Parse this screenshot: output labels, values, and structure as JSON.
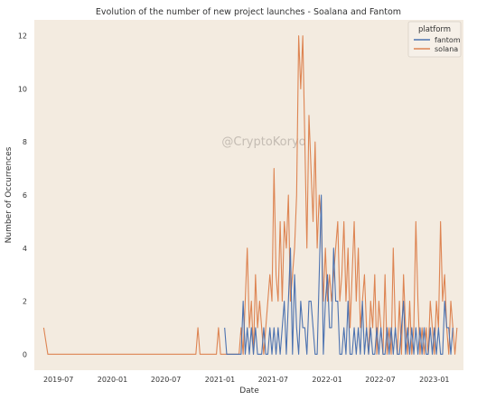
{
  "chart_data": {
    "type": "line",
    "title": "Evolution of the number of new project launches - Soalana and Fantom",
    "xlabel": "Date",
    "ylabel": "Number of Occurrences",
    "watermark": "@CryptoKoryo",
    "legend": {
      "title": "platform",
      "position": "top-right"
    },
    "grid": false,
    "background": "#f3ebe0",
    "xlim": [
      "2019-04-10",
      "2023-04-10"
    ],
    "ylim": [
      -0.6,
      12.6
    ],
    "xticks": [
      "2019-07",
      "2020-01",
      "2020-07",
      "2021-01",
      "2021-07",
      "2022-01",
      "2022-07",
      "2023-01"
    ],
    "yticks": [
      0,
      2,
      4,
      6,
      8,
      10,
      12
    ],
    "series": [
      {
        "name": "fantom",
        "color": "#4c72b0",
        "points": [
          [
            "2021-01-17",
            1
          ],
          [
            "2021-01-24",
            0
          ],
          [
            "2021-03-14",
            0
          ],
          [
            "2021-03-21",
            2
          ],
          [
            "2021-03-28",
            0
          ],
          [
            "2021-04-04",
            1
          ],
          [
            "2021-04-11",
            0
          ],
          [
            "2021-04-18",
            1
          ],
          [
            "2021-04-25",
            0
          ],
          [
            "2021-05-02",
            1
          ],
          [
            "2021-05-09",
            0
          ],
          [
            "2021-05-23",
            0
          ],
          [
            "2021-05-30",
            1
          ],
          [
            "2021-06-06",
            0
          ],
          [
            "2021-06-13",
            0
          ],
          [
            "2021-06-20",
            1
          ],
          [
            "2021-06-27",
            0
          ],
          [
            "2021-07-04",
            1
          ],
          [
            "2021-07-11",
            0
          ],
          [
            "2021-07-18",
            1
          ],
          [
            "2021-07-25",
            0
          ],
          [
            "2021-08-01",
            1
          ],
          [
            "2021-08-08",
            2
          ],
          [
            "2021-08-15",
            0
          ],
          [
            "2021-08-22",
            2
          ],
          [
            "2021-08-29",
            4
          ],
          [
            "2021-09-05",
            0
          ],
          [
            "2021-09-12",
            3
          ],
          [
            "2021-09-19",
            1
          ],
          [
            "2021-09-26",
            0
          ],
          [
            "2021-10-03",
            2
          ],
          [
            "2021-10-10",
            1
          ],
          [
            "2021-10-17",
            1
          ],
          [
            "2021-10-24",
            0
          ],
          [
            "2021-10-31",
            2
          ],
          [
            "2021-11-07",
            2
          ],
          [
            "2021-11-14",
            1
          ],
          [
            "2021-11-21",
            0
          ],
          [
            "2021-11-28",
            0
          ],
          [
            "2021-12-05",
            3
          ],
          [
            "2021-12-12",
            6
          ],
          [
            "2021-12-19",
            0
          ],
          [
            "2021-12-26",
            2
          ],
          [
            "2022-01-02",
            3
          ],
          [
            "2022-01-09",
            1
          ],
          [
            "2022-01-16",
            1
          ],
          [
            "2022-01-23",
            4
          ],
          [
            "2022-01-30",
            2
          ],
          [
            "2022-02-06",
            2
          ],
          [
            "2022-02-13",
            0
          ],
          [
            "2022-02-20",
            0
          ],
          [
            "2022-02-27",
            1
          ],
          [
            "2022-03-06",
            0
          ],
          [
            "2022-03-13",
            2
          ],
          [
            "2022-03-20",
            0
          ],
          [
            "2022-03-27",
            0
          ],
          [
            "2022-04-03",
            1
          ],
          [
            "2022-04-10",
            0
          ],
          [
            "2022-04-17",
            1
          ],
          [
            "2022-04-24",
            0
          ],
          [
            "2022-05-01",
            2
          ],
          [
            "2022-05-08",
            0
          ],
          [
            "2022-05-15",
            1
          ],
          [
            "2022-05-22",
            0
          ],
          [
            "2022-05-29",
            1
          ],
          [
            "2022-06-05",
            0
          ],
          [
            "2022-06-12",
            0
          ],
          [
            "2022-06-19",
            1
          ],
          [
            "2022-06-26",
            0
          ],
          [
            "2022-07-03",
            1
          ],
          [
            "2022-07-10",
            0
          ],
          [
            "2022-07-17",
            0
          ],
          [
            "2022-07-24",
            1
          ],
          [
            "2022-07-31",
            0
          ],
          [
            "2022-08-07",
            1
          ],
          [
            "2022-08-14",
            0
          ],
          [
            "2022-08-21",
            1
          ],
          [
            "2022-08-28",
            0
          ],
          [
            "2022-09-04",
            0
          ],
          [
            "2022-09-11",
            1
          ],
          [
            "2022-09-18",
            2
          ],
          [
            "2022-09-25",
            0
          ],
          [
            "2022-10-02",
            1
          ],
          [
            "2022-10-09",
            0
          ],
          [
            "2022-10-16",
            1
          ],
          [
            "2022-10-23",
            0
          ],
          [
            "2022-10-30",
            1
          ],
          [
            "2022-11-06",
            0
          ],
          [
            "2022-11-13",
            1
          ],
          [
            "2022-11-20",
            0
          ],
          [
            "2022-11-27",
            1
          ],
          [
            "2022-12-04",
            0
          ],
          [
            "2022-12-11",
            0
          ],
          [
            "2022-12-18",
            1
          ],
          [
            "2022-12-25",
            0
          ],
          [
            "2023-01-01",
            1
          ],
          [
            "2023-01-08",
            0
          ],
          [
            "2023-01-15",
            1
          ],
          [
            "2023-01-22",
            0
          ],
          [
            "2023-01-29",
            0
          ],
          [
            "2023-02-05",
            2
          ],
          [
            "2023-02-12",
            1
          ],
          [
            "2023-02-19",
            1
          ],
          [
            "2023-02-26",
            0
          ],
          [
            "2023-03-05",
            1
          ]
        ]
      },
      {
        "name": "solana",
        "color": "#dd8452",
        "points": [
          [
            "2019-05-12",
            1
          ],
          [
            "2019-05-26",
            0
          ],
          [
            "2020-10-11",
            0
          ],
          [
            "2020-10-18",
            1
          ],
          [
            "2020-10-25",
            0
          ],
          [
            "2020-12-20",
            0
          ],
          [
            "2020-12-27",
            1
          ],
          [
            "2021-01-03",
            0
          ],
          [
            "2021-03-07",
            0
          ],
          [
            "2021-03-14",
            1
          ],
          [
            "2021-03-21",
            0
          ],
          [
            "2021-03-28",
            2
          ],
          [
            "2021-04-04",
            4
          ],
          [
            "2021-04-11",
            1
          ],
          [
            "2021-04-18",
            2
          ],
          [
            "2021-04-25",
            0
          ],
          [
            "2021-05-02",
            3
          ],
          [
            "2021-05-09",
            1
          ],
          [
            "2021-05-16",
            2
          ],
          [
            "2021-05-23",
            1
          ],
          [
            "2021-05-30",
            0
          ],
          [
            "2021-06-06",
            1
          ],
          [
            "2021-06-13",
            2
          ],
          [
            "2021-06-20",
            3
          ],
          [
            "2021-06-27",
            2
          ],
          [
            "2021-07-04",
            7
          ],
          [
            "2021-07-11",
            3
          ],
          [
            "2021-07-18",
            2
          ],
          [
            "2021-07-25",
            5
          ],
          [
            "2021-08-01",
            2
          ],
          [
            "2021-08-08",
            5
          ],
          [
            "2021-08-15",
            4
          ],
          [
            "2021-08-22",
            6
          ],
          [
            "2021-08-29",
            2
          ],
          [
            "2021-09-05",
            3
          ],
          [
            "2021-09-12",
            4
          ],
          [
            "2021-09-19",
            6
          ],
          [
            "2021-09-26",
            12
          ],
          [
            "2021-10-03",
            10
          ],
          [
            "2021-10-10",
            12
          ],
          [
            "2021-10-17",
            8
          ],
          [
            "2021-10-24",
            4
          ],
          [
            "2021-10-31",
            9
          ],
          [
            "2021-11-07",
            7
          ],
          [
            "2021-11-14",
            5
          ],
          [
            "2021-11-21",
            8
          ],
          [
            "2021-11-28",
            4
          ],
          [
            "2021-12-05",
            6
          ],
          [
            "2021-12-12",
            5
          ],
          [
            "2021-12-19",
            2
          ],
          [
            "2021-12-26",
            4
          ],
          [
            "2022-01-02",
            2
          ],
          [
            "2022-01-09",
            3
          ],
          [
            "2022-01-16",
            2
          ],
          [
            "2022-01-23",
            3
          ],
          [
            "2022-01-30",
            4
          ],
          [
            "2022-02-06",
            5
          ],
          [
            "2022-02-13",
            2
          ],
          [
            "2022-02-20",
            3
          ],
          [
            "2022-02-27",
            5
          ],
          [
            "2022-03-06",
            2
          ],
          [
            "2022-03-13",
            4
          ],
          [
            "2022-03-20",
            1
          ],
          [
            "2022-03-27",
            3
          ],
          [
            "2022-04-03",
            5
          ],
          [
            "2022-04-10",
            2
          ],
          [
            "2022-04-17",
            4
          ],
          [
            "2022-04-24",
            1
          ],
          [
            "2022-05-01",
            2
          ],
          [
            "2022-05-08",
            3
          ],
          [
            "2022-05-15",
            1
          ],
          [
            "2022-05-22",
            0
          ],
          [
            "2022-05-29",
            2
          ],
          [
            "2022-06-05",
            1
          ],
          [
            "2022-06-12",
            3
          ],
          [
            "2022-06-19",
            0
          ],
          [
            "2022-06-26",
            2
          ],
          [
            "2022-07-03",
            1
          ],
          [
            "2022-07-10",
            0
          ],
          [
            "2022-07-17",
            3
          ],
          [
            "2022-07-24",
            0
          ],
          [
            "2022-07-31",
            1
          ],
          [
            "2022-08-07",
            0
          ],
          [
            "2022-08-14",
            4
          ],
          [
            "2022-08-21",
            1
          ],
          [
            "2022-08-28",
            0
          ],
          [
            "2022-09-04",
            2
          ],
          [
            "2022-09-11",
            0
          ],
          [
            "2022-09-18",
            3
          ],
          [
            "2022-09-25",
            1
          ],
          [
            "2022-10-02",
            0
          ],
          [
            "2022-10-09",
            2
          ],
          [
            "2022-10-16",
            0
          ],
          [
            "2022-10-23",
            1
          ],
          [
            "2022-10-30",
            5
          ],
          [
            "2022-11-06",
            2
          ],
          [
            "2022-11-13",
            0
          ],
          [
            "2022-11-20",
            1
          ],
          [
            "2022-11-27",
            0
          ],
          [
            "2022-12-04",
            1
          ],
          [
            "2022-12-11",
            0
          ],
          [
            "2022-12-18",
            2
          ],
          [
            "2022-12-25",
            1
          ],
          [
            "2023-01-01",
            0
          ],
          [
            "2023-01-08",
            2
          ],
          [
            "2023-01-15",
            1
          ],
          [
            "2023-01-22",
            5
          ],
          [
            "2023-01-29",
            2
          ],
          [
            "2023-02-05",
            3
          ],
          [
            "2023-02-12",
            1
          ],
          [
            "2023-02-19",
            0
          ],
          [
            "2023-02-26",
            2
          ],
          [
            "2023-03-05",
            1
          ],
          [
            "2023-03-12",
            0
          ],
          [
            "2023-03-19",
            1
          ]
        ]
      }
    ]
  }
}
